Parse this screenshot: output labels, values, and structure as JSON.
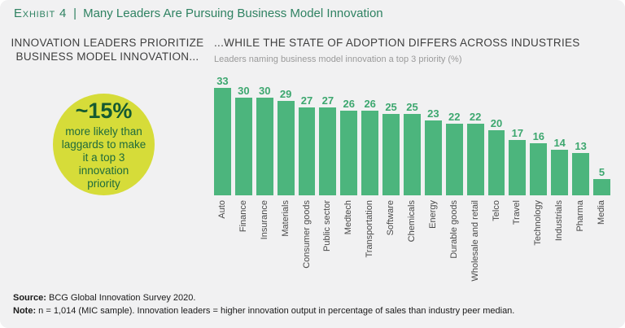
{
  "exhibit": {
    "label": "Exhibit 4",
    "separator": "|",
    "title": "Many Leaders Are Pursuing Business Model Innovation"
  },
  "left_panel": {
    "heading": "INNOVATION LEADERS PRIORITIZE BUSINESS MODEL INNOVATION...",
    "circle": {
      "headline": "~15%",
      "body": "more likely than\nlaggards to make\nit a top 3\ninnovation\npriority"
    }
  },
  "right_panel": {
    "heading": "...WHILE THE STATE OF ADOPTION DIFFERS ACROSS INDUSTRIES",
    "subtitle": "Leaders naming business model innovation a top 3 priority (%)"
  },
  "chart_data": {
    "type": "bar",
    "title": "...WHILE THE STATE OF ADOPTION DIFFERS ACROSS INDUSTRIES",
    "subtitle": "Leaders naming business model innovation a top 3 priority (%)",
    "categories": [
      "Auto",
      "Finance",
      "Insurance",
      "Materials",
      "Consumer goods",
      "Public sector",
      "Medtech",
      "Transportation",
      "Software",
      "Chemicals",
      "Energy",
      "Durable goods",
      "Wholesale and retail",
      "Telco",
      "Travel",
      "Technology",
      "Industrials",
      "Pharma",
      "Media"
    ],
    "values": [
      33,
      30,
      30,
      29,
      27,
      27,
      26,
      26,
      25,
      25,
      23,
      22,
      22,
      20,
      17,
      16,
      14,
      13,
      5
    ],
    "xlabel": "",
    "ylabel": "Leaders naming business model innovation a top 3 priority (%)",
    "ylim": [
      0,
      35
    ],
    "grid": false,
    "legend": "none",
    "value_labels": "above bars",
    "category_label_rotation": 90
  },
  "footer": {
    "source_label": "Source:",
    "source_text": " BCG Global Innovation Survey 2020.",
    "note_label": "Note:",
    "note_text": " n = 1,014 (MIC sample). Innovation leaders = higher innovation output in percentage of sales than industry peer median."
  },
  "colors": {
    "background": "#f1f1f2",
    "accent_teal": "#2f8262",
    "bar": "#4cb57d",
    "value_label": "#3da76f",
    "circle_fill": "#d6dc39",
    "circle_headline_text": "#155a31",
    "circle_body_text": "#1e6b3c",
    "heading_text": "#3e3e3e",
    "subtitle_text": "#9a9a9a"
  }
}
